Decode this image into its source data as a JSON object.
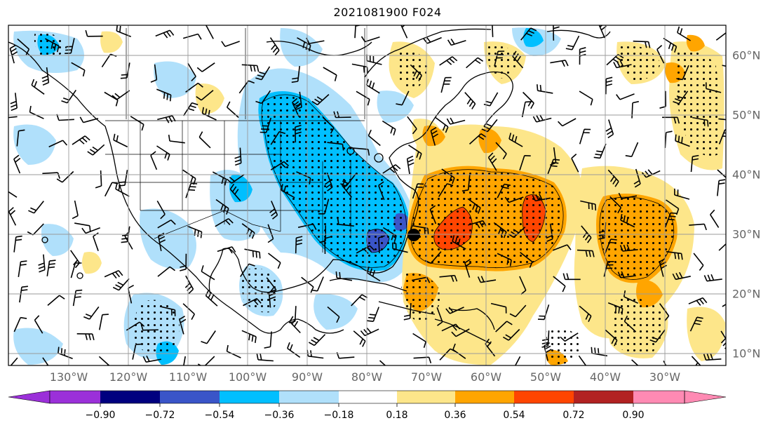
{
  "title": "2021081900 F024",
  "lon_ticks": [
    "130°W",
    "120°W",
    "110°W",
    "100°W",
    "90°W",
    "80°W",
    "70°W",
    "60°W",
    "50°W",
    "40°W",
    "30°W"
  ],
  "lat_ticks": [
    "60°N",
    "50°N",
    "40°N",
    "30°N",
    "20°N",
    "10°N"
  ],
  "colorbar": {
    "labels": [
      "−0.90",
      "−0.72",
      "−0.54",
      "−0.36",
      "−0.18",
      "0.18",
      "0.36",
      "0.54",
      "0.72",
      "0.90"
    ],
    "colors": [
      "#9b30d9",
      "#00007f",
      "#3a55c8",
      "#00bfff",
      "#b0e0fb",
      "#ffffff",
      "#fde68a",
      "#ffa500",
      "#ff4500",
      "#b22222",
      "#ff8ab3"
    ]
  },
  "colors": {
    "neg_light": "#b0e0fb",
    "neg_mid": "#00bfff",
    "neg_strong": "#3a55c8",
    "neg_core": "#00007f",
    "pos_light": "#fde68a",
    "pos_mid": "#ffa500",
    "pos_strong": "#ff4500",
    "grid": "#9a9a9a",
    "coast": "#000000"
  }
}
